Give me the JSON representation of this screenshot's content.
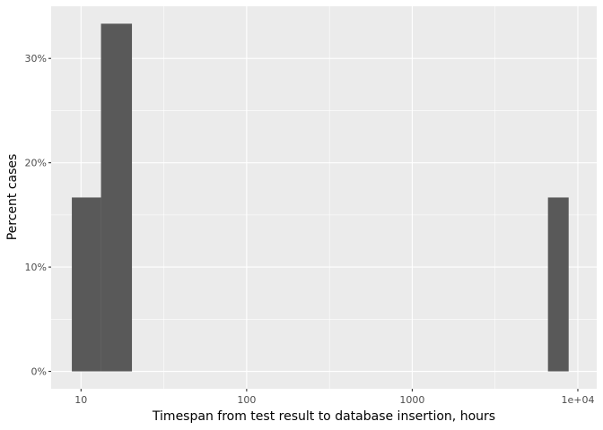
{
  "chart_data": {
    "type": "bar",
    "title": "",
    "xlabel": "Timespan from test result to database insertion, hours",
    "ylabel": "Percent cases",
    "x_scale": "log10",
    "xlim": [
      6.6,
      13000
    ],
    "ylim": [
      -0.0167,
      0.35
    ],
    "x_ticks": [
      {
        "value": 10,
        "label": "10"
      },
      {
        "value": 100,
        "label": "100"
      },
      {
        "value": 1000,
        "label": "1000"
      },
      {
        "value": 10000,
        "label": "1e+04"
      }
    ],
    "y_ticks": [
      {
        "value": 0,
        "label": "0%"
      },
      {
        "value": 0.1,
        "label": "10%"
      },
      {
        "value": 0.2,
        "label": "20%"
      },
      {
        "value": 0.3,
        "label": "30%"
      }
    ],
    "bins": [
      {
        "x_min": 8.8,
        "x_max": 13.2,
        "value": 0.1667
      },
      {
        "x_min": 13.2,
        "x_max": 20.3,
        "value": 0.3333
      },
      {
        "x_min": 6600,
        "x_max": 8800,
        "value": 0.1667
      }
    ],
    "bar_color": "#595959",
    "panel_color": "#ebebeb",
    "grid": true
  }
}
